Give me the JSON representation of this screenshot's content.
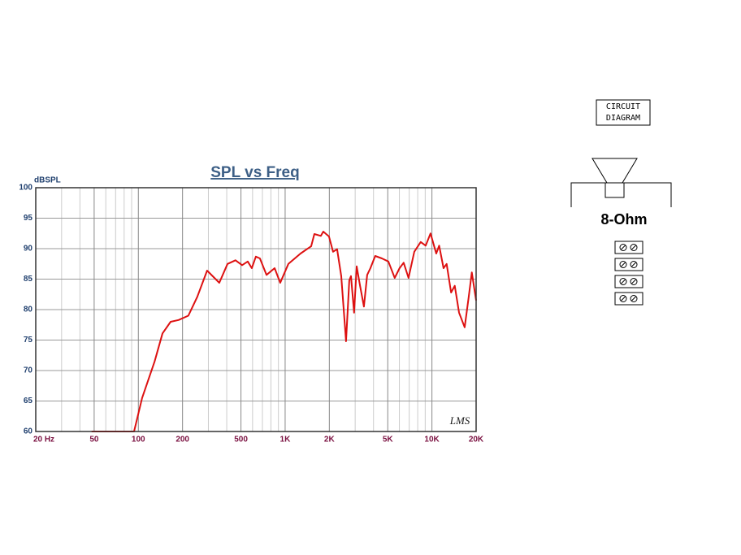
{
  "chart_data": {
    "type": "line",
    "title": "SPL vs Freq",
    "ylabel": "dBSPL",
    "watermark": "LMS",
    "x": [
      48,
      93.5,
      106,
      129,
      146,
      166,
      188,
      219,
      252,
      294,
      356,
      405,
      459,
      509,
      556,
      593,
      632,
      673,
      746,
      848,
      926,
      1052,
      1273,
      1504,
      1582,
      1750,
      1820,
      1990,
      2120,
      2260,
      2410,
      2600,
      2736,
      2810,
      2950,
      3070,
      3230,
      3440,
      3620,
      3810,
      4110,
      4560,
      5050,
      5580,
      6020,
      6420,
      6930,
      7580,
      8390,
      9060,
      9790,
      10700,
      11200,
      12000,
      12600,
      13500,
      14300,
      15300,
      16700,
      17800,
      18700,
      20000
    ],
    "series": [
      {
        "name": "SPL",
        "color": "#dd1111",
        "values": [
          60,
          60,
          65.5,
          71.5,
          76.1,
          78,
          78.3,
          79,
          82.1,
          86.4,
          84.4,
          87.5,
          88.1,
          87.3,
          87.9,
          86.8,
          88.7,
          88.4,
          85.7,
          86.8,
          84.4,
          87.5,
          89.2,
          90.4,
          92.4,
          92.1,
          92.8,
          92,
          89.5,
          89.9,
          85.5,
          74.8,
          84.8,
          85.5,
          79.5,
          87.1,
          84.1,
          80.5,
          85.7,
          86.8,
          88.8,
          88.4,
          87.9,
          85.2,
          86.8,
          87.7,
          85.2,
          89.5,
          91.1,
          90.5,
          92.5,
          89.2,
          90.5,
          86.8,
          87.5,
          82.8,
          83.9,
          79.5,
          77.1,
          82.1,
          86.1,
          81.5
        ]
      }
    ],
    "xscale": "log",
    "xlim": [
      20,
      20000
    ],
    "ylim": [
      60,
      100
    ],
    "xticks": [
      {
        "value": 20,
        "label": "20 Hz"
      },
      50,
      100,
      200,
      500,
      {
        "value": 1000,
        "label": "1K"
      },
      {
        "value": 2000,
        "label": "2K"
      },
      {
        "value": 5000,
        "label": "5K"
      },
      {
        "value": 10000,
        "label": "10K"
      },
      {
        "value": 20000,
        "label": "20K"
      }
    ],
    "x_minor_grid": [
      30,
      40,
      60,
      70,
      80,
      90,
      300,
      400,
      600,
      700,
      800,
      900,
      3000,
      4000,
      6000,
      7000,
      8000,
      9000
    ],
    "yticks": [
      60,
      65,
      70,
      75,
      80,
      85,
      90,
      95,
      100
    ],
    "grid": true
  },
  "circuit": {
    "label_lines": [
      "CIRCUIT",
      "DIAGRAM"
    ],
    "impedance": "8-Ohm"
  }
}
